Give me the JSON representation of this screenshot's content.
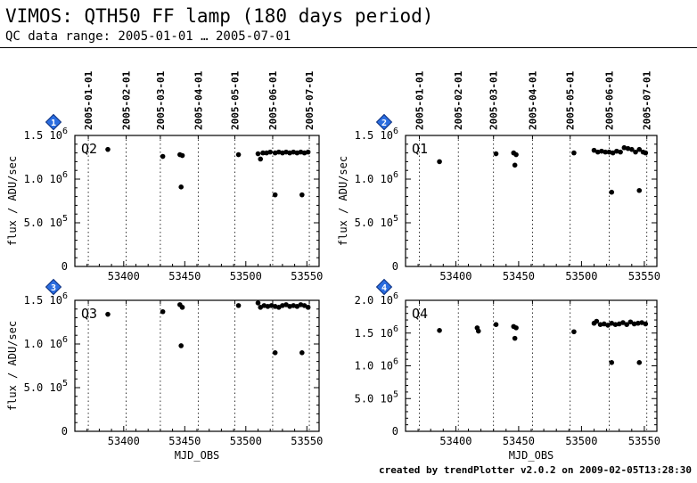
{
  "header": {
    "title": "VIMOS: QTH50 FF lamp (180 days period)",
    "subtitle": "QC data range: 2005-01-01 … 2005-07-01"
  },
  "footer": {
    "credit": "created by trendPlotter v2.0.2 on 2009-02-05T13:28:30"
  },
  "chart_data": [
    {
      "type": "scatter",
      "id": "1",
      "label": "Q2",
      "xlabel": "",
      "ylabel": "flux / ADU/sec",
      "xlim": [
        53360,
        53560
      ],
      "ylim": [
        0,
        1500000
      ],
      "x_ticks": [
        53400,
        53450,
        53500,
        53550
      ],
      "y_ticks": [
        {
          "v": 0,
          "t": "0"
        },
        {
          "v": 500000,
          "t": "5.0 10^5"
        },
        {
          "v": 1000000,
          "t": "1.0 10^6"
        },
        {
          "v": 1500000,
          "t": "1.5 10^6"
        }
      ],
      "date_ticks": [
        "2005-01-01",
        "2005-02-01",
        "2005-03-01",
        "2005-04-01",
        "2005-05-01",
        "2005-06-01",
        "2005-07-01"
      ],
      "x": [
        53387,
        53432,
        53446,
        53447,
        53448,
        53494,
        53510,
        53512,
        53514,
        53517,
        53520,
        53524,
        53527,
        53530,
        53533,
        53536,
        53539,
        53542,
        53545,
        53548,
        53551,
        53524,
        53546
      ],
      "y": [
        1340000,
        1260000,
        1280000,
        910000,
        1270000,
        1280000,
        1290000,
        1230000,
        1300000,
        1300000,
        1310000,
        1300000,
        1310000,
        1300000,
        1310000,
        1300000,
        1310000,
        1300000,
        1310000,
        1300000,
        1310000,
        820000,
        820000
      ]
    },
    {
      "type": "scatter",
      "id": "2",
      "label": "Q1",
      "xlabel": "",
      "ylabel": "flux / ADU/sec",
      "xlim": [
        53360,
        53560
      ],
      "ylim": [
        0,
        1500000
      ],
      "x_ticks": [
        53400,
        53450,
        53500,
        53550
      ],
      "y_ticks": [
        {
          "v": 0,
          "t": "0"
        },
        {
          "v": 500000,
          "t": "5.0 10^5"
        },
        {
          "v": 1000000,
          "t": "1.0 10^6"
        },
        {
          "v": 1500000,
          "t": "1.5 10^6"
        }
      ],
      "date_ticks": [
        "2005-01-01",
        "2005-02-01",
        "2005-03-01",
        "2005-04-01",
        "2005-05-01",
        "2005-06-01",
        "2005-07-01"
      ],
      "x": [
        53387,
        53432,
        53446,
        53447,
        53448,
        53494,
        53510,
        53513,
        53516,
        53519,
        53522,
        53525,
        53528,
        53531,
        53534,
        53537,
        53540,
        53543,
        53546,
        53549,
        53551,
        53524,
        53546
      ],
      "y": [
        1200000,
        1290000,
        1300000,
        1160000,
        1280000,
        1300000,
        1330000,
        1310000,
        1320000,
        1310000,
        1310000,
        1300000,
        1320000,
        1310000,
        1360000,
        1350000,
        1340000,
        1310000,
        1340000,
        1310000,
        1300000,
        850000,
        870000
      ]
    },
    {
      "type": "scatter",
      "id": "3",
      "label": "Q3",
      "xlabel": "MJD_OBS",
      "ylabel": "flux / ADU/sec",
      "xlim": [
        53360,
        53560
      ],
      "ylim": [
        0,
        1500000
      ],
      "x_ticks": [
        53400,
        53450,
        53500,
        53550
      ],
      "y_ticks": [
        {
          "v": 0,
          "t": "0"
        },
        {
          "v": 500000,
          "t": "5.0 10^5"
        },
        {
          "v": 1000000,
          "t": "1.0 10^6"
        },
        {
          "v": 1500000,
          "t": "1.5 10^6"
        }
      ],
      "date_ticks": [],
      "x": [
        53387,
        53432,
        53446,
        53447,
        53448,
        53494,
        53510,
        53512,
        53515,
        53518,
        53521,
        53524,
        53527,
        53530,
        53533,
        53536,
        53539,
        53542,
        53545,
        53548,
        53551,
        53524,
        53546
      ],
      "y": [
        1340000,
        1370000,
        1450000,
        980000,
        1420000,
        1440000,
        1470000,
        1420000,
        1440000,
        1430000,
        1440000,
        1430000,
        1420000,
        1440000,
        1450000,
        1430000,
        1440000,
        1430000,
        1450000,
        1440000,
        1420000,
        900000,
        900000
      ]
    },
    {
      "type": "scatter",
      "id": "4",
      "label": "Q4",
      "xlabel": "MJD_OBS",
      "ylabel": "",
      "xlim": [
        53360,
        53560
      ],
      "ylim": [
        0,
        2000000
      ],
      "x_ticks": [
        53400,
        53450,
        53500,
        53550
      ],
      "y_ticks": [
        {
          "v": 0,
          "t": "0"
        },
        {
          "v": 500000,
          "t": "5.0 10^5"
        },
        {
          "v": 1000000,
          "t": "1.0 10^6"
        },
        {
          "v": 1500000,
          "t": "1.5 10^6"
        },
        {
          "v": 2000000,
          "t": "2.0 10^6"
        }
      ],
      "date_ticks": [],
      "x": [
        53387,
        53417,
        53418,
        53432,
        53446,
        53447,
        53448,
        53494,
        53510,
        53512,
        53515,
        53518,
        53521,
        53524,
        53527,
        53530,
        53533,
        53536,
        53539,
        53542,
        53545,
        53548,
        53551,
        53524,
        53546
      ],
      "y": [
        1540000,
        1580000,
        1530000,
        1630000,
        1600000,
        1420000,
        1580000,
        1520000,
        1650000,
        1680000,
        1630000,
        1640000,
        1620000,
        1650000,
        1630000,
        1640000,
        1660000,
        1630000,
        1670000,
        1640000,
        1650000,
        1660000,
        1640000,
        1050000,
        1050000
      ]
    }
  ]
}
